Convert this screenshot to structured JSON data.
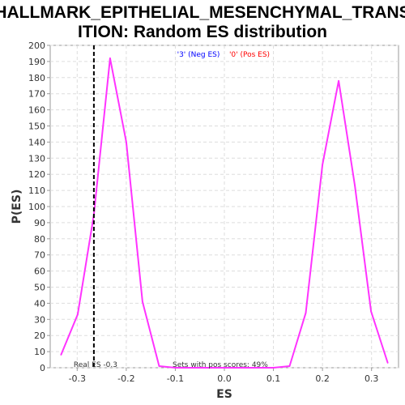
{
  "chart_data": {
    "type": "line",
    "title_line1": "HALLMARK_EPITHELIAL_MESENCHYMAL_TRANS",
    "title_line2": "ITION: Random ES distribution",
    "xlabel": "ES",
    "ylabel": "P(ES)",
    "xlim": [
      -0.355,
      0.355
    ],
    "ylim": [
      0,
      200
    ],
    "x_ticks": [
      -0.3,
      -0.2,
      -0.1,
      0.0,
      0.1,
      0.2,
      0.3
    ],
    "x_tick_labels": [
      "-0.3",
      "-0.2",
      "-0.1",
      "0.0",
      "0.1",
      "0.2",
      "0.3"
    ],
    "y_ticks": [
      0,
      10,
      20,
      30,
      40,
      50,
      60,
      70,
      80,
      90,
      100,
      110,
      120,
      130,
      140,
      150,
      160,
      170,
      180,
      190,
      200
    ],
    "grid": true,
    "legend_placement": "top-center",
    "legend": [
      {
        "label": "'3' (Neg ES)",
        "color": "#0000ff"
      },
      {
        "label": "'0' (Pos ES)",
        "color": "#ff0000"
      }
    ],
    "series": [
      {
        "color": "#ff33ff",
        "x": [
          -0.333,
          -0.299,
          -0.266,
          -0.233,
          -0.2,
          -0.167,
          -0.133,
          -0.1,
          -0.066,
          -0.033,
          0.0,
          0.033,
          0.066,
          0.1,
          0.133,
          0.166,
          0.2,
          0.233,
          0.266,
          0.299,
          0.333
        ],
        "y": [
          8,
          33,
          95,
          192,
          140,
          41,
          1,
          0,
          0,
          0,
          0,
          0,
          0,
          0,
          1,
          34,
          126,
          178,
          113,
          35,
          3
        ]
      }
    ],
    "real_es": {
      "x": -0.266,
      "label": "Real ES -0.3",
      "color": "#000000"
    },
    "annotation": "Sets with pos scores: 49%"
  }
}
